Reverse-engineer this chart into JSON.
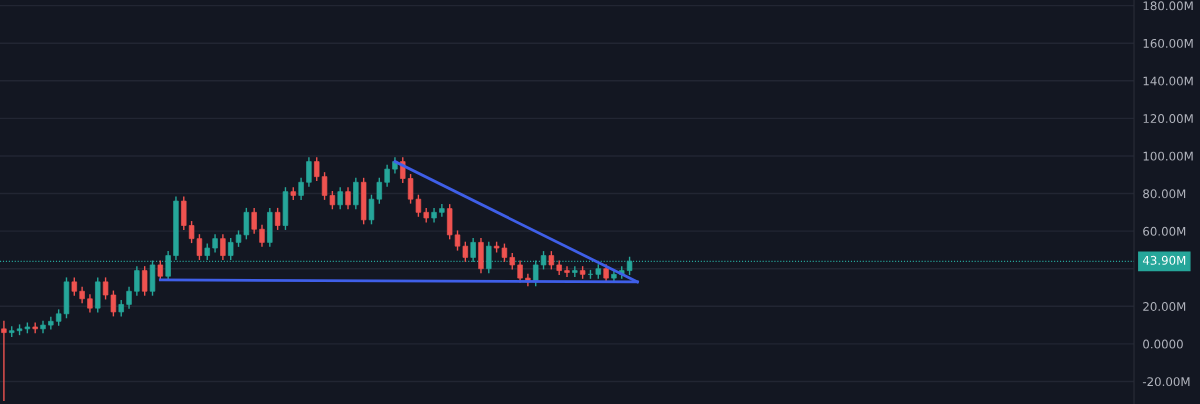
{
  "chart_data": {
    "type": "candlestick",
    "categories": [
      null,
      null,
      null,
      null,
      null,
      null,
      null,
      null,
      null,
      null,
      null,
      null,
      null,
      null,
      null,
      null,
      null,
      null,
      null,
      null,
      null,
      null,
      null,
      null,
      null,
      null,
      null,
      null,
      null,
      null,
      null,
      null,
      null,
      null,
      null,
      null,
      null,
      null,
      null,
      null,
      null,
      null,
      null,
      null,
      null,
      null,
      null,
      null,
      null,
      null,
      null,
      null,
      null,
      null,
      null,
      null,
      null,
      null,
      null,
      null,
      null,
      null,
      null,
      null,
      null,
      null,
      null,
      null,
      null,
      null,
      null,
      null,
      null,
      null,
      null,
      null,
      null,
      null,
      null,
      null,
      null,
      null,
      null,
      null,
      null,
      null,
      null,
      null,
      null,
      null,
      null,
      null,
      null,
      null,
      null,
      null,
      null,
      null,
      null,
      null,
      null,
      null,
      null,
      null,
      null,
      null,
      null,
      null,
      null,
      null,
      null,
      null,
      null,
      null,
      null,
      null,
      null,
      null,
      null,
      null,
      null,
      null,
      null,
      null,
      null,
      null,
      null,
      null,
      null,
      null,
      null,
      null,
      null,
      null,
      null,
      null,
      null,
      null,
      null,
      null,
      null,
      null,
      null,
      null,
      null
    ],
    "ohlc": [
      [
        8,
        12,
        -30,
        6
      ],
      [
        6,
        9,
        4,
        7
      ],
      [
        7,
        10,
        5,
        8
      ],
      [
        8,
        11,
        6,
        9
      ],
      [
        9,
        11,
        6,
        8
      ],
      [
        8,
        12,
        6,
        10
      ],
      [
        10,
        14,
        8,
        12
      ],
      [
        12,
        18,
        10,
        16
      ],
      [
        16,
        35,
        14,
        33
      ],
      [
        33,
        35,
        26,
        28
      ],
      [
        28,
        30,
        22,
        24
      ],
      [
        24,
        26,
        17,
        19
      ],
      [
        19,
        35,
        17,
        33
      ],
      [
        33,
        35,
        24,
        26
      ],
      [
        26,
        28,
        15,
        17
      ],
      [
        17,
        23,
        15,
        21
      ],
      [
        21,
        30,
        19,
        28
      ],
      [
        28,
        41,
        26,
        39
      ],
      [
        39,
        41,
        26,
        28
      ],
      [
        28,
        44,
        26,
        42
      ],
      [
        42,
        44,
        34,
        36
      ],
      [
        36,
        49,
        34,
        47
      ],
      [
        47,
        78,
        45,
        76
      ],
      [
        76,
        78,
        61,
        63
      ],
      [
        63,
        65,
        54,
        56
      ],
      [
        56,
        58,
        45,
        47
      ],
      [
        47,
        53,
        45,
        51
      ],
      [
        51,
        58,
        49,
        56
      ],
      [
        56,
        58,
        45,
        47
      ],
      [
        47,
        56,
        45,
        54
      ],
      [
        54,
        60,
        52,
        58
      ],
      [
        58,
        72,
        56,
        70
      ],
      [
        70,
        72,
        59,
        61
      ],
      [
        61,
        63,
        52,
        54
      ],
      [
        54,
        72,
        52,
        70
      ],
      [
        70,
        72,
        61,
        63
      ],
      [
        63,
        83,
        61,
        81
      ],
      [
        81,
        83,
        77,
        79
      ],
      [
        79,
        88,
        77,
        86
      ],
      [
        86,
        99,
        84,
        97
      ],
      [
        97,
        99,
        87,
        89
      ],
      [
        89,
        91,
        77,
        79
      ],
      [
        79,
        81,
        72,
        74
      ],
      [
        74,
        83,
        72,
        81
      ],
      [
        81,
        83,
        72,
        74
      ],
      [
        74,
        88,
        72,
        86
      ],
      [
        86,
        88,
        64,
        66
      ],
      [
        66,
        79,
        64,
        77
      ],
      [
        77,
        88,
        75,
        86
      ],
      [
        86,
        95,
        84,
        93
      ],
      [
        93,
        99,
        91,
        97
      ],
      [
        97,
        99,
        86,
        88
      ],
      [
        88,
        90,
        75,
        77
      ],
      [
        77,
        79,
        68,
        70
      ],
      [
        70,
        72,
        65,
        67
      ],
      [
        67,
        72,
        65,
        70
      ],
      [
        70,
        74,
        68,
        72
      ],
      [
        72,
        74,
        56,
        58
      ],
      [
        58,
        60,
        50,
        52
      ],
      [
        52,
        54,
        44,
        46
      ],
      [
        46,
        56,
        44,
        54
      ],
      [
        54,
        56,
        38,
        40
      ],
      [
        40,
        54,
        38,
        52
      ],
      [
        52,
        54,
        49,
        51
      ],
      [
        51,
        53,
        44,
        46
      ],
      [
        46,
        48,
        40,
        42
      ],
      [
        42,
        44,
        33,
        35
      ],
      [
        35,
        37,
        31,
        33
      ],
      [
        33,
        44,
        31,
        42
      ],
      [
        42,
        49,
        40,
        47
      ],
      [
        47,
        49,
        40,
        42
      ],
      [
        42,
        44,
        37,
        39
      ],
      [
        39,
        41,
        36,
        38
      ],
      [
        38,
        41,
        36,
        39
      ],
      [
        39,
        41,
        35,
        37
      ],
      [
        37,
        39,
        35,
        37
      ],
      [
        37,
        42,
        35,
        40
      ],
      [
        40,
        42,
        33,
        35
      ],
      [
        35,
        39,
        33,
        37
      ],
      [
        37,
        41,
        35,
        39
      ],
      [
        39,
        46,
        37,
        44
      ],
      null,
      null,
      null,
      null,
      null,
      null,
      null,
      null,
      null,
      null,
      null,
      null,
      null,
      null,
      null,
      null,
      null,
      null,
      null,
      null,
      null,
      null,
      null,
      null,
      null,
      null,
      null,
      null,
      null,
      null,
      null,
      null,
      null,
      null,
      null,
      null,
      null,
      null,
      null,
      null,
      null,
      null,
      null,
      null,
      null,
      null,
      null,
      null,
      null,
      null,
      null,
      null,
      null,
      null,
      null,
      null,
      null,
      null,
      null,
      null,
      null,
      null,
      null,
      null
    ],
    "colors": [
      "#ef5350",
      "#26a69a",
      "#26a69a",
      "#26a69a",
      "#ef5350",
      "#26a69a",
      "#26a69a",
      "#26a69a",
      "#26a69a",
      "#ef5350",
      "#ef5350",
      "#ef5350",
      "#26a69a",
      "#ef5350",
      "#ef5350",
      "#26a69a",
      "#26a69a",
      "#26a69a",
      "#ef5350",
      "#26a69a",
      "#ef5350",
      "#26a69a",
      "#26a69a",
      "#ef5350",
      "#ef5350",
      "#ef5350",
      "#26a69a",
      "#26a69a",
      "#ef5350",
      "#26a69a",
      "#26a69a",
      "#26a69a",
      "#ef5350",
      "#ef5350",
      "#26a69a",
      "#ef5350",
      "#26a69a",
      "#ef5350",
      "#26a69a",
      "#26a69a",
      "#ef5350",
      "#ef5350",
      "#ef5350",
      "#26a69a",
      "#ef5350",
      "#26a69a",
      "#ef5350",
      "#26a69a",
      "#26a69a",
      "#26a69a",
      "#26a69a",
      "#ef5350",
      "#ef5350",
      "#ef5350",
      "#ef5350",
      "#26a69a",
      "#26a69a",
      "#ef5350",
      "#ef5350",
      "#ef5350",
      "#26a69a",
      "#ef5350",
      "#26a69a",
      "#ef5350",
      "#ef5350",
      "#ef5350",
      "#ef5350",
      "#ef5350",
      "#26a69a",
      "#26a69a",
      "#ef5350",
      "#ef5350",
      "#ef5350",
      "#26a69a",
      "#ef5350",
      "#26a69a",
      "#26a69a",
      "#ef5350",
      "#26a69a",
      "#26a69a",
      "#26a69a",
      null,
      null,
      null,
      null,
      null,
      null,
      null,
      null,
      null,
      null,
      null,
      null,
      null,
      null,
      null,
      null,
      null,
      null,
      null,
      null,
      null,
      null,
      null,
      null,
      null,
      null,
      null,
      null,
      null,
      null,
      null,
      null,
      null,
      null,
      null,
      null,
      null,
      null,
      null,
      null,
      null,
      null,
      null,
      null,
      null,
      null,
      null,
      null,
      null,
      null,
      null,
      null,
      null,
      null,
      null,
      null,
      null,
      null,
      null,
      null,
      null,
      null,
      null,
      null
    ],
    "series": [
      {
        "type": "line",
        "color": "#3f5fe8",
        "values": [
          null,
          null,
          null,
          null,
          null,
          null,
          null,
          null,
          null,
          null,
          null,
          null,
          null,
          null,
          null,
          null,
          null,
          null,
          null,
          null,
          34,
          null,
          null,
          null,
          null,
          null,
          null,
          null,
          null,
          null,
          null,
          null,
          null,
          null,
          null,
          null,
          null,
          null,
          null,
          null,
          null,
          null,
          null,
          null,
          null,
          null,
          null,
          null,
          null,
          null,
          null,
          null,
          null,
          null,
          null,
          null,
          null,
          null,
          null,
          null,
          null,
          null,
          null,
          null,
          null,
          null,
          null,
          null,
          null,
          null,
          null,
          null,
          null,
          null,
          null,
          null,
          null,
          null,
          null,
          null,
          null,
          33,
          null,
          null,
          null,
          null,
          null,
          null,
          null,
          null,
          null,
          null,
          null,
          null,
          null,
          null,
          null,
          null,
          null,
          null,
          null,
          null,
          null,
          null,
          null,
          null,
          null,
          null,
          null,
          null,
          null,
          null,
          null,
          null,
          null,
          null,
          null,
          null,
          null,
          null,
          null,
          null,
          null,
          null,
          null,
          null,
          null,
          null,
          null,
          null,
          null,
          null,
          null,
          null,
          null,
          null,
          null,
          null,
          null,
          null,
          null,
          null,
          null,
          null,
          null
        ]
      },
      {
        "type": "line",
        "color": "#3f5fe8",
        "values": [
          null,
          null,
          null,
          null,
          null,
          null,
          null,
          null,
          null,
          null,
          null,
          null,
          null,
          null,
          null,
          null,
          null,
          null,
          null,
          null,
          null,
          null,
          null,
          null,
          null,
          null,
          null,
          null,
          null,
          null,
          null,
          null,
          null,
          null,
          null,
          null,
          null,
          null,
          null,
          null,
          null,
          null,
          null,
          null,
          null,
          null,
          null,
          null,
          null,
          null,
          97,
          null,
          null,
          null,
          null,
          null,
          null,
          null,
          null,
          null,
          null,
          null,
          null,
          null,
          null,
          null,
          null,
          null,
          null,
          null,
          null,
          null,
          null,
          null,
          null,
          null,
          null,
          null,
          null,
          null,
          null,
          33,
          null,
          null,
          null,
          null,
          null,
          null,
          null,
          null,
          null,
          null,
          null,
          null,
          null,
          null,
          null,
          null,
          null,
          null,
          null,
          null,
          null,
          null,
          null,
          null,
          null,
          null,
          null,
          null,
          null,
          null,
          null,
          null,
          null,
          null,
          null,
          null,
          null,
          null,
          null,
          null,
          null,
          null,
          null,
          null,
          null,
          null,
          null,
          null,
          null,
          null,
          null,
          null,
          null,
          null,
          null,
          null,
          null,
          null,
          null,
          null,
          null,
          null,
          null
        ]
      }
    ],
    "ref_lines": [
      {
        "axis": "y",
        "value": 43.9,
        "label": "43.90M",
        "color": "#26a69a",
        "line_style": "dotted"
      }
    ],
    "ylim": [
      -32,
      183
    ],
    "yticks": [
      {
        "value": -20,
        "label": "-20.00M"
      },
      {
        "value": 0,
        "label": "0.0000"
      },
      {
        "value": 20,
        "label": "20.00M"
      },
      {
        "value": 40,
        "label": null
      },
      {
        "value": 60,
        "label": "60.00M"
      },
      {
        "value": 80,
        "label": "80.00M"
      },
      {
        "value": 100,
        "label": "100.00M"
      },
      {
        "value": 120,
        "label": "120.00M"
      },
      {
        "value": 140,
        "label": "140.00M"
      },
      {
        "value": 160,
        "label": "160.00M"
      },
      {
        "value": 180,
        "label": "180.00M"
      }
    ],
    "tick_labels": "y",
    "grid": "y"
  }
}
